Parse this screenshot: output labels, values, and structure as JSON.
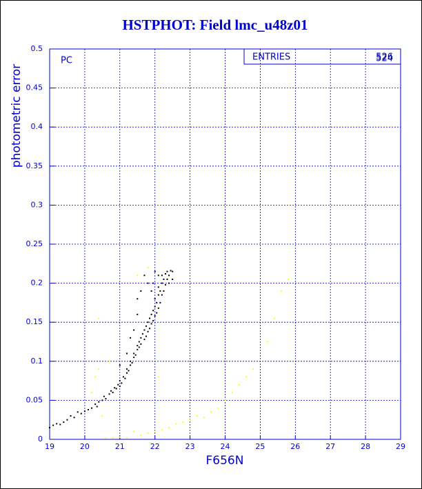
{
  "chart_data": {
    "type": "scatter",
    "title": "HSTPHOT: Field lmc_u48z01",
    "x_label": "F656N",
    "y_label": "photometric error",
    "annotation": "PC",
    "stats_label": "ENTRIES",
    "stats_values": [
      "526",
      "524"
    ],
    "xlim": [
      19,
      29
    ],
    "ylim": [
      0,
      0.5
    ],
    "xticks": [
      19,
      20,
      21,
      22,
      23,
      24,
      25,
      26,
      27,
      28,
      29
    ],
    "yticks": [
      0,
      0.05,
      0.1,
      0.15,
      0.2,
      0.25,
      0.3,
      0.35,
      0.4,
      0.45,
      0.5
    ],
    "grid": true,
    "axis_color": "#0000cc",
    "series": [
      {
        "color": "#000000",
        "x": [
          19.0,
          19.1,
          19.2,
          19.3,
          19.4,
          19.5,
          19.6,
          19.7,
          19.8,
          19.9,
          20.0,
          20.1,
          20.2,
          20.3,
          20.35,
          20.4,
          20.5,
          20.55,
          20.6,
          20.7,
          20.75,
          20.8,
          20.85,
          20.9,
          20.95,
          21.0,
          21.0,
          21.05,
          21.1,
          21.15,
          21.2,
          21.2,
          21.25,
          21.3,
          21.3,
          21.35,
          21.4,
          21.4,
          21.45,
          21.5,
          21.5,
          21.55,
          21.55,
          21.6,
          21.6,
          21.65,
          21.7,
          21.7,
          21.75,
          21.75,
          21.8,
          21.8,
          21.85,
          21.85,
          21.9,
          21.9,
          21.95,
          21.95,
          22.0,
          22.0,
          22.0,
          22.05,
          22.05,
          22.1,
          22.1,
          22.1,
          22.15,
          22.15,
          22.2,
          22.2,
          22.2,
          22.25,
          22.25,
          22.3,
          22.3,
          22.35,
          22.35,
          22.4,
          22.4,
          22.45,
          22.5,
          22.5,
          21.5,
          21.5,
          21.6,
          21.7,
          21.8,
          21.3,
          21.4,
          21.2,
          21.0,
          22.0,
          22.1,
          21.9,
          21.95
        ],
        "values": [
          0.015,
          0.018,
          0.02,
          0.019,
          0.022,
          0.025,
          0.03,
          0.028,
          0.035,
          0.033,
          0.036,
          0.038,
          0.04,
          0.045,
          0.042,
          0.048,
          0.05,
          0.055,
          0.052,
          0.058,
          0.062,
          0.06,
          0.066,
          0.065,
          0.07,
          0.068,
          0.075,
          0.072,
          0.08,
          0.078,
          0.085,
          0.09,
          0.088,
          0.095,
          0.1,
          0.098,
          0.105,
          0.11,
          0.108,
          0.115,
          0.12,
          0.118,
          0.125,
          0.13,
          0.122,
          0.135,
          0.14,
          0.128,
          0.145,
          0.132,
          0.15,
          0.138,
          0.155,
          0.142,
          0.16,
          0.148,
          0.165,
          0.152,
          0.17,
          0.158,
          0.18,
          0.175,
          0.162,
          0.185,
          0.168,
          0.195,
          0.19,
          0.175,
          0.2,
          0.185,
          0.21,
          0.205,
          0.19,
          0.212,
          0.198,
          0.215,
          0.205,
          0.21,
          0.2,
          0.216,
          0.215,
          0.205,
          0.18,
          0.16,
          0.19,
          0.21,
          0.2,
          0.13,
          0.14,
          0.11,
          0.095,
          0.215,
          0.21,
          0.19,
          0.2
        ]
      },
      {
        "color": "#ffff00",
        "x": [
          20.2,
          20.3,
          20.4,
          20.5,
          20.4,
          20.6,
          20.8,
          21.0,
          21.2,
          21.4,
          21.6,
          21.8,
          22.0,
          22.2,
          22.4,
          22.6,
          22.8,
          23.0,
          23.2,
          23.4,
          23.6,
          23.8,
          24.0,
          24.2,
          24.4,
          24.6,
          24.8,
          25.2,
          25.4,
          25.6,
          25.8,
          21.5,
          22.1,
          21.8,
          20.7
        ],
        "values": [
          0.06,
          0.08,
          0.09,
          0.03,
          0.155,
          0.002,
          0.002,
          0.003,
          0.002,
          0.01,
          0.005,
          0.008,
          0.01,
          0.012,
          0.015,
          0.02,
          0.022,
          0.025,
          0.03,
          0.028,
          0.035,
          0.04,
          0.05,
          0.06,
          0.07,
          0.08,
          0.09,
          0.125,
          0.155,
          0.19,
          0.205,
          0.21,
          0.08,
          0.22,
          0.1
        ]
      }
    ]
  }
}
